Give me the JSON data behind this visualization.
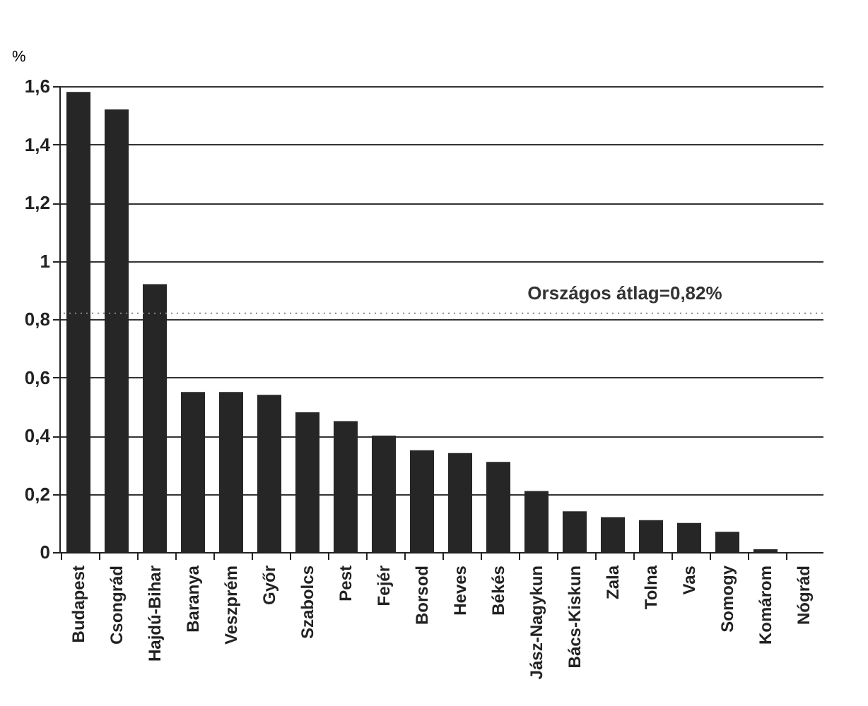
{
  "chart_data": {
    "type": "bar",
    "ylabel": "%",
    "categories": [
      "Budapest",
      "Csongrád",
      "Hajdú-Bihar",
      "Baranya",
      "Veszprém",
      "Győr",
      "Szabolcs",
      "Pest",
      "Fejér",
      "Borsod",
      "Heves",
      "Békés",
      "Jász-Nagykun",
      "Bács-Kiskun",
      "Zala",
      "Tolna",
      "Vas",
      "Somogy",
      "Komárom",
      "Nógrád"
    ],
    "values": [
      1.58,
      1.52,
      0.92,
      0.55,
      0.55,
      0.54,
      0.48,
      0.45,
      0.4,
      0.35,
      0.34,
      0.31,
      0.21,
      0.14,
      0.12,
      0.11,
      0.1,
      0.07,
      0.01,
      0
    ],
    "color": "#262626",
    "ylim": [
      0,
      1.6
    ],
    "yticks": [
      0,
      {
        "value": 0.2,
        "label": "0,2"
      },
      {
        "value": 0.4,
        "label": "0,4"
      },
      {
        "value": 0.6,
        "label": "0,6"
      },
      {
        "value": 0.8,
        "label": "0,8"
      },
      1,
      {
        "value": 1.2,
        "label": "1,2"
      },
      {
        "value": 1.4,
        "label": "1,4"
      },
      {
        "value": 1.6,
        "label": "1,6"
      }
    ],
    "grid": "y",
    "ref_lines": [
      {
        "axis": "y",
        "value": 0.82,
        "label": "Országos átlag=0,82%",
        "line_style": "dotted",
        "color": "#888888"
      }
    ]
  }
}
